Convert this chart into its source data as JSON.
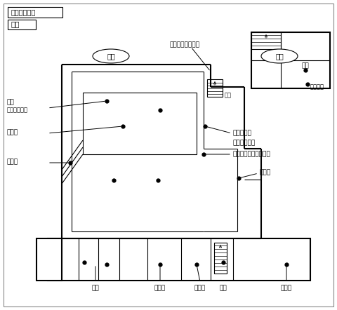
{
  "title": "館内のご案内",
  "subtitle": "本館",
  "bg_color": "#ffffff",
  "line_color": "#000000",
  "figsize": [
    4.8,
    4.42
  ],
  "dpi": 100,
  "floor1": "１階",
  "floor2": "２階",
  "simultaneous": "同時通訳・録画室",
  "stairs1": "階段",
  "stairs2": "階段",
  "front_entrance": "正面出入口",
  "exhibit": "展示コーナー",
  "library": "図書・ビデオコーナー",
  "service": "通用口",
  "main_stage": "本舞台",
  "hashigakari": "橋懸り",
  "green_room": "楽屋",
  "mirror_room": "鏡の間",
  "office": "事務室",
  "rest_room": "休憩室",
  "stage2": "舞台",
  "second_stage": "第二舞台",
  "viewing": "見所",
  "viewing_kana": "（けんしょ）"
}
